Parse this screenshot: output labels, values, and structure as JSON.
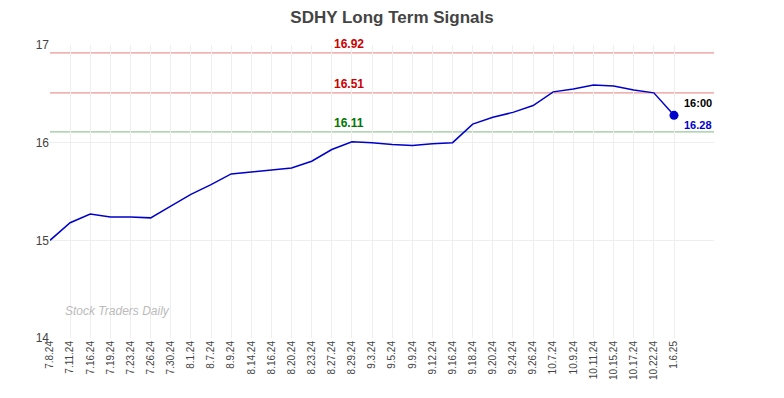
{
  "chart_data": {
    "type": "line",
    "title": "SDHY Long Term Signals",
    "categories": [
      "7.8.24",
      "7.11.24",
      "7.16.24",
      "7.19.24",
      "7.23.24",
      "7.26.24",
      "7.30.24",
      "8.1.24",
      "8.7.24",
      "8.9.24",
      "8.14.24",
      "8.16.24",
      "8.20.24",
      "8.23.24",
      "8.27.24",
      "8.29.24",
      "9.3.24",
      "9.5.24",
      "9.9.24",
      "9.12.24",
      "9.16.24",
      "9.18.24",
      "9.20.24",
      "9.24.24",
      "9.26.24",
      "10.7.24",
      "10.9.24",
      "10.11.24",
      "10.15.24",
      "10.17.24",
      "10.22.24",
      "1.6.25"
    ],
    "values": [
      15.0,
      15.18,
      15.27,
      15.24,
      15.24,
      15.23,
      15.35,
      15.47,
      15.57,
      15.68,
      15.7,
      15.72,
      15.74,
      15.81,
      15.93,
      16.01,
      16.0,
      15.98,
      15.97,
      15.99,
      16.0,
      16.19,
      16.26,
      16.31,
      16.38,
      16.52,
      16.55,
      16.59,
      16.58,
      16.54,
      16.51,
      16.28
    ],
    "color": "#0000cc",
    "marker": "last",
    "hlines": [
      {
        "value": 16.92,
        "label": "16.92",
        "color": "#cc0000"
      },
      {
        "value": 16.51,
        "label": "16.51",
        "color": "#cc0000"
      },
      {
        "value": 16.11,
        "label": "16.11",
        "color": "#007700"
      }
    ],
    "end_label": "16:00",
    "end_value_label": "16.28",
    "watermark": "Stock Traders Daily",
    "ylim": [
      14,
      17
    ],
    "yticks": [
      14,
      15,
      16,
      17
    ],
    "grid": true
  }
}
